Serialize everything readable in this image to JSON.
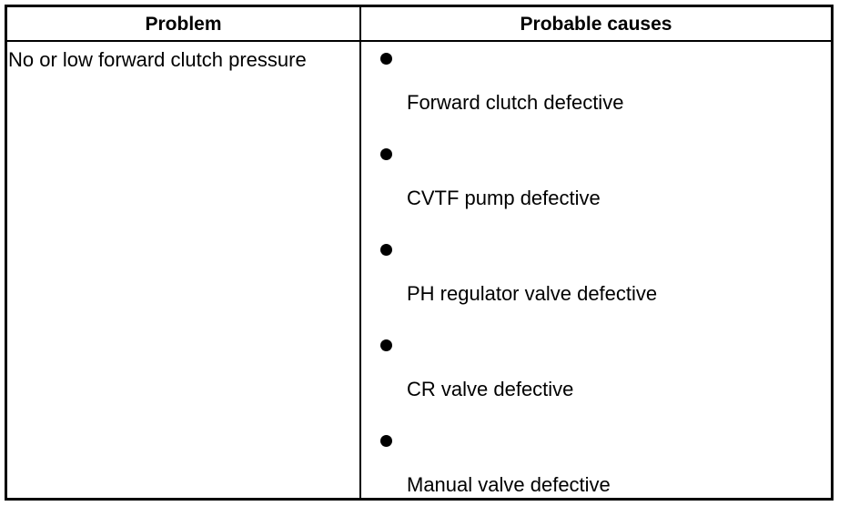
{
  "table": {
    "headers": [
      "Problem",
      "Probable causes"
    ],
    "rows": [
      [
        "No or low forward clutch pressure",
        [
          "Forward clutch defective",
          "CVTF pump defective",
          "PH regulator valve defective",
          "CR valve defective",
          "Manual valve defective"
        ]
      ]
    ]
  }
}
